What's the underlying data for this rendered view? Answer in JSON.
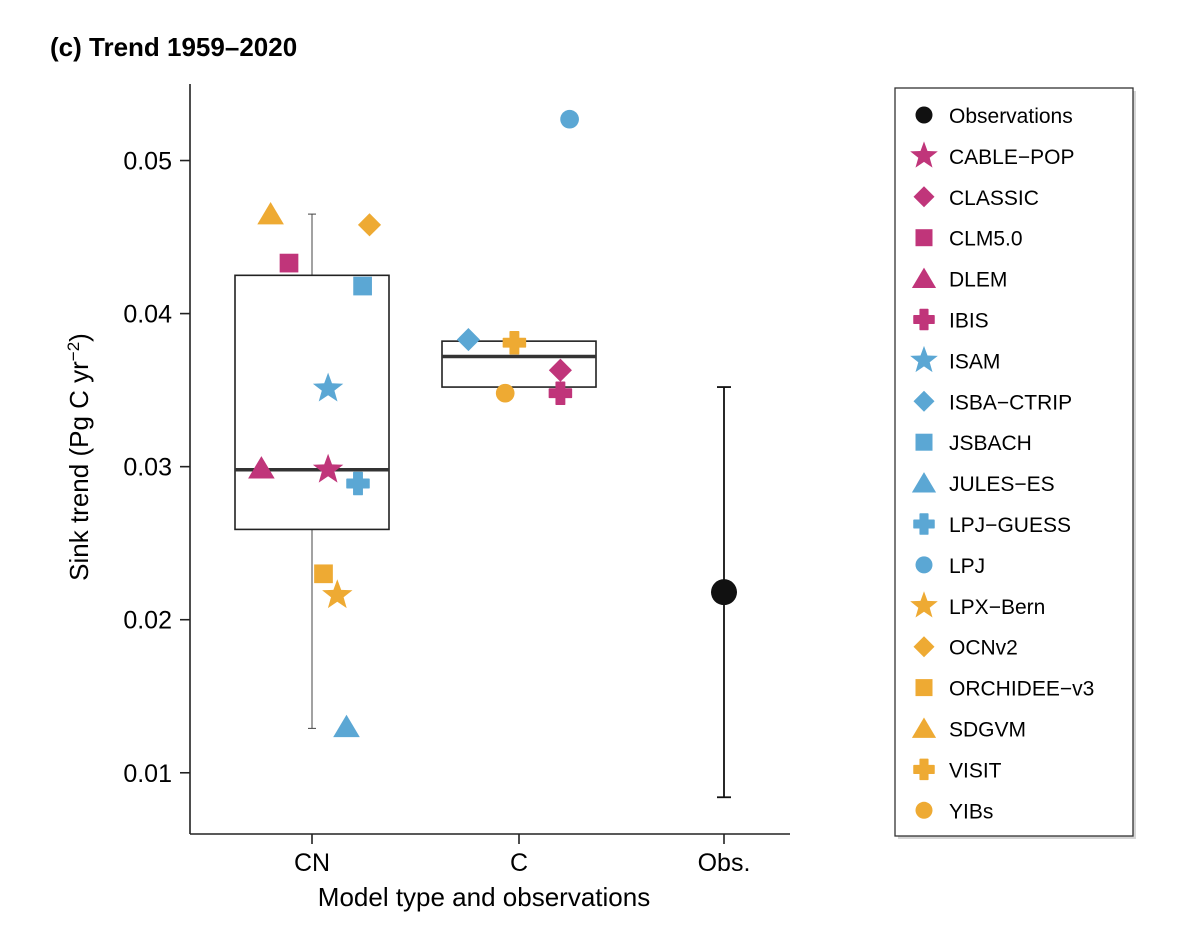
{
  "chart_data": {
    "type": "scatter",
    "title": "(c)  Trend 1959–2020",
    "xlabel": "Model type and observations",
    "ylabel": "Sink trend (Pg C yr",
    "ylabel_sup": "−2",
    "ylabel_close": ")",
    "categories": [
      "CN",
      "C",
      "Obs."
    ],
    "ylim": [
      0.006,
      0.055
    ],
    "yticks": [
      0.01,
      0.02,
      0.03,
      0.04,
      0.05
    ],
    "ytick_labels": [
      "0.01",
      "0.02",
      "0.03",
      "0.04",
      "0.05"
    ],
    "grid": false,
    "legend_placement": "right",
    "colors": {
      "magenta": "#c0357a",
      "blue": "#5ba7d4",
      "orange": "#eeaa33",
      "black": "#111111"
    },
    "boxes": [
      {
        "category": "CN",
        "q1": 0.0259,
        "median": 0.0298,
        "q3": 0.0425,
        "whisker_low": 0.0129,
        "whisker_high": 0.0465
      },
      {
        "category": "C",
        "q1": 0.0352,
        "median": 0.0372,
        "q3": 0.0382
      }
    ],
    "observation": {
      "category": "Obs.",
      "value": 0.0218,
      "err_low": 0.0084,
      "err_high": 0.0352
    },
    "points": [
      {
        "model": "SDGVM",
        "category": "CN",
        "offset": -0.18,
        "y": 0.0465
      },
      {
        "model": "OCNv2",
        "category": "CN",
        "offset": 0.25,
        "y": 0.0458
      },
      {
        "model": "CLM5.0",
        "category": "CN",
        "offset": -0.1,
        "y": 0.0433
      },
      {
        "model": "JSBACH",
        "category": "CN",
        "offset": 0.22,
        "y": 0.0418
      },
      {
        "model": "ISAM",
        "category": "CN",
        "offset": 0.07,
        "y": 0.0351
      },
      {
        "model": "DLEM",
        "category": "CN",
        "offset": -0.22,
        "y": 0.0299
      },
      {
        "model": "CABLE-POP",
        "category": "CN",
        "offset": 0.07,
        "y": 0.0298
      },
      {
        "model": "LPJ-GUESS",
        "category": "CN",
        "offset": 0.2,
        "y": 0.0289
      },
      {
        "model": "ORCHIDEE-v3",
        "category": "CN",
        "offset": 0.05,
        "y": 0.023
      },
      {
        "model": "LPX-Bern",
        "category": "CN",
        "offset": 0.11,
        "y": 0.0216
      },
      {
        "model": "JULES-ES",
        "category": "CN",
        "offset": 0.15,
        "y": 0.013
      },
      {
        "model": "LPJ",
        "category": "C",
        "offset": 0.22,
        "y": 0.0527
      },
      {
        "model": "ISBA-CTRIP",
        "category": "C",
        "offset": -0.22,
        "y": 0.0383
      },
      {
        "model": "VISIT",
        "category": "C",
        "offset": -0.02,
        "y": 0.0381
      },
      {
        "model": "CLASSIC",
        "category": "C",
        "offset": 0.18,
        "y": 0.0363
      },
      {
        "model": "IBIS",
        "category": "C",
        "offset": 0.18,
        "y": 0.0348
      },
      {
        "model": "YIBs",
        "category": "C",
        "offset": -0.06,
        "y": 0.0348
      }
    ],
    "legend": [
      {
        "label": "Observations",
        "shape": "circle",
        "color": "black"
      },
      {
        "label": "CABLE−POP",
        "shape": "star",
        "color": "magenta"
      },
      {
        "label": "CLASSIC",
        "shape": "diamond",
        "color": "magenta"
      },
      {
        "label": "CLM5.0",
        "shape": "square",
        "color": "magenta"
      },
      {
        "label": "DLEM",
        "shape": "triangle",
        "color": "magenta"
      },
      {
        "label": "IBIS",
        "shape": "cross",
        "color": "magenta"
      },
      {
        "label": "ISAM",
        "shape": "star",
        "color": "blue"
      },
      {
        "label": "ISBA−CTRIP",
        "shape": "diamond",
        "color": "blue"
      },
      {
        "label": "JSBACH",
        "shape": "square",
        "color": "blue"
      },
      {
        "label": "JULES−ES",
        "shape": "triangle",
        "color": "blue"
      },
      {
        "label": "LPJ−GUESS",
        "shape": "cross",
        "color": "blue"
      },
      {
        "label": "LPJ",
        "shape": "circle",
        "color": "blue"
      },
      {
        "label": "LPX−Bern",
        "shape": "star",
        "color": "orange"
      },
      {
        "label": "OCNv2",
        "shape": "diamond",
        "color": "orange"
      },
      {
        "label": "ORCHIDEE−v3",
        "shape": "square",
        "color": "orange"
      },
      {
        "label": "SDGVM",
        "shape": "triangle",
        "color": "orange"
      },
      {
        "label": "VISIT",
        "shape": "cross",
        "color": "orange"
      },
      {
        "label": "YIBs",
        "shape": "circle",
        "color": "orange"
      }
    ]
  }
}
